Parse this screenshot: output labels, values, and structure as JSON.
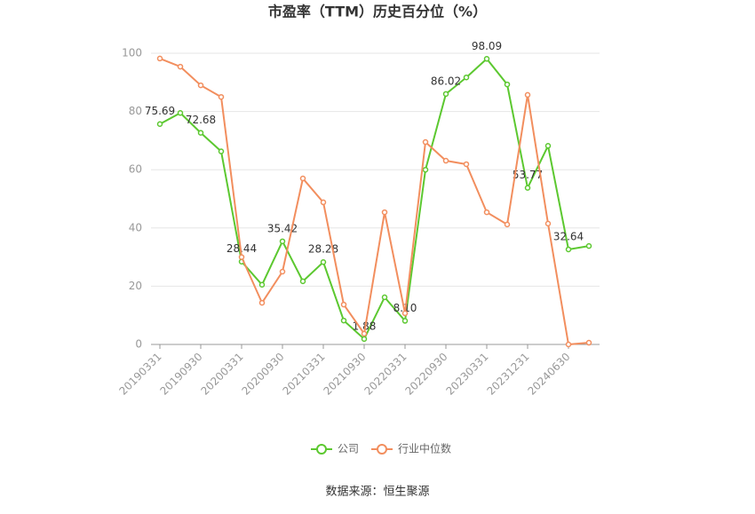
{
  "chart_data": {
    "type": "line",
    "title": "市盈率（TTM）历史百分位（%）",
    "categories": [
      "20190331",
      null,
      "20190930",
      null,
      "20200331",
      null,
      "20200930",
      null,
      "20210331",
      null,
      "20210930",
      null,
      "20220331",
      null,
      "20220930",
      null,
      "20230331",
      null,
      "20231231",
      null,
      "20240630",
      null
    ],
    "series": [
      {
        "name": "公司",
        "color": "#5cc830",
        "values": [
          75.69,
          79.5,
          72.68,
          66.3,
          28.44,
          20.5,
          35.42,
          21.7,
          28.28,
          8.2,
          1.88,
          16.2,
          8.1,
          60.0,
          86.02,
          91.7,
          98.09,
          89.3,
          53.77,
          68.2,
          32.64,
          33.8
        ],
        "value_labels": [
          "75.69",
          null,
          "72.68",
          null,
          "28.44",
          null,
          "35.42",
          null,
          "28.28",
          null,
          "1.88",
          null,
          "8.10",
          null,
          "86.02",
          null,
          "98.09",
          null,
          "53.77",
          null,
          "32.64",
          null
        ]
      },
      {
        "name": "行业中位数",
        "color": "#f28e5e",
        "values": [
          98.2,
          95.4,
          89.0,
          85.0,
          30.0,
          14.3,
          25.0,
          57.0,
          48.8,
          13.7,
          3.7,
          45.4,
          10.7,
          69.5,
          63.1,
          61.9,
          45.4,
          41.2,
          85.7,
          41.5,
          0.0,
          0.6
        ]
      }
    ],
    "ylim": [
      0,
      100
    ],
    "yticks": [
      0,
      20,
      40,
      60,
      80,
      100
    ],
    "grid": true,
    "legend": "bottom",
    "source": "数据来源：恒生聚源"
  }
}
